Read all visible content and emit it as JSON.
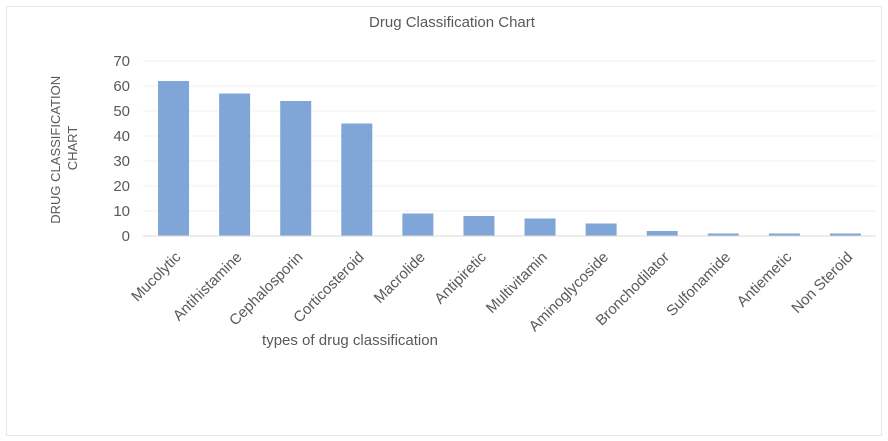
{
  "chart_data": {
    "type": "bar",
    "title": "Drug Classification Chart",
    "xlabel": "types of drug classification",
    "ylabel": "DRUG CLASSIFICATION CHART",
    "categories": [
      "Mucolytic",
      "Antihistamine",
      "Cephalosporin",
      "Corticosteroid",
      "Macrolide",
      "Antipiretic",
      "Multivitamin",
      "Aminoglycoside",
      "Bronchodilator",
      "Sulfonamide",
      "Antiemetic",
      "Non Steroid"
    ],
    "values": [
      62,
      57,
      54,
      45,
      9,
      8,
      7,
      5,
      2,
      1,
      1,
      1
    ],
    "ylim": [
      0,
      70
    ],
    "yticks": [
      "0",
      "10",
      "20",
      "30",
      "40",
      "50",
      "60",
      "70"
    ],
    "grid": true,
    "legend": "none",
    "colors": {
      "bar": "#7fa6d6",
      "grid": "#f0f0f0",
      "axis": "#d9d9d9",
      "text": "#595959"
    }
  }
}
